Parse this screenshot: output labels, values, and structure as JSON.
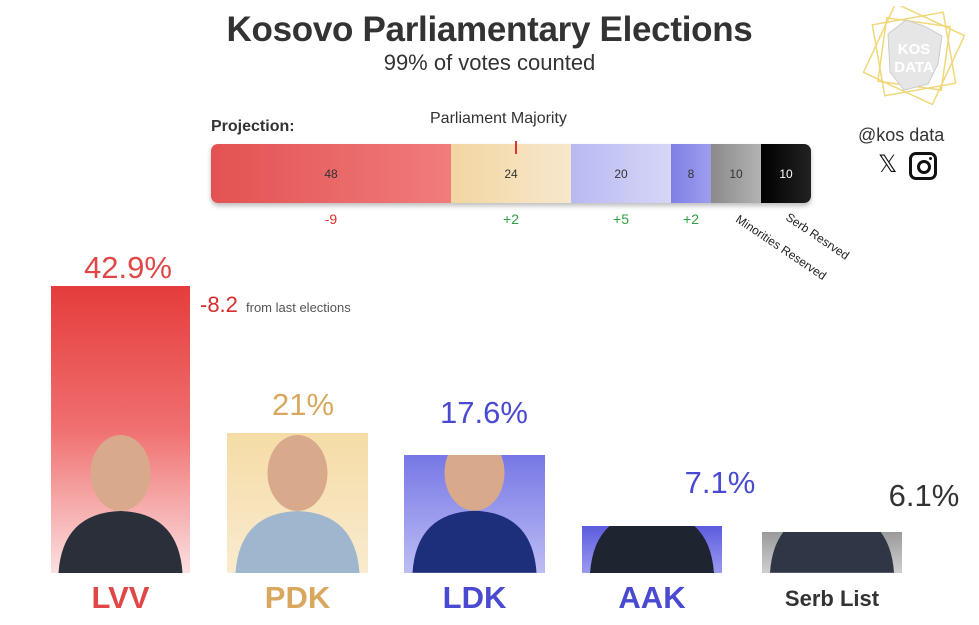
{
  "header": {
    "title": "Kosovo Parliamentary Elections",
    "subtitle": "99% of votes counted"
  },
  "branding": {
    "logo_text": "KOS DATA",
    "handle": "@kos data",
    "social_icons": [
      "x-icon",
      "instagram-icon"
    ]
  },
  "projection": {
    "label": "Projection:",
    "majority_label": "Parliament Majority",
    "segments": [
      {
        "party": "LVV",
        "seats": "48",
        "change": "-9",
        "color": "#e45b5b"
      },
      {
        "party": "PDK",
        "seats": "24",
        "change": "+2",
        "color": "#f4ddb0"
      },
      {
        "party": "LDK",
        "seats": "20",
        "change": "+5",
        "color": "#c5c5f4"
      },
      {
        "party": "AAK",
        "seats": "8",
        "change": "+2",
        "color": "#8f8fe8"
      },
      {
        "party": "Minorities Reserved",
        "seats": "10",
        "change": "",
        "color": "#9a9a9a"
      },
      {
        "party": "Serb Resrved",
        "seats": "10",
        "change": "",
        "color": "#111111"
      }
    ],
    "reserved_labels": {
      "minorities": "Minorities Reserved",
      "serb": "Serb Resrved"
    }
  },
  "chart_data": {
    "type": "bar",
    "categories": [
      "LVV",
      "PDK",
      "LDK",
      "AAK",
      "Serb List"
    ],
    "values": [
      42.9,
      21,
      17.6,
      7.1,
      6.1
    ],
    "value_labels": [
      "42.9%",
      "21%",
      "17.6%",
      "7.1%",
      "6.1%"
    ],
    "colors": [
      "#e04848",
      "#d9a85e",
      "#4a4ad0",
      "#4a4ad0",
      "#333333"
    ],
    "ylim": [
      0,
      42.9
    ],
    "title": "Kosovo Parliamentary Elections",
    "xlabel": "",
    "ylabel": ""
  },
  "annotation": {
    "change_value": "-8.2",
    "change_note": "from last elections"
  }
}
